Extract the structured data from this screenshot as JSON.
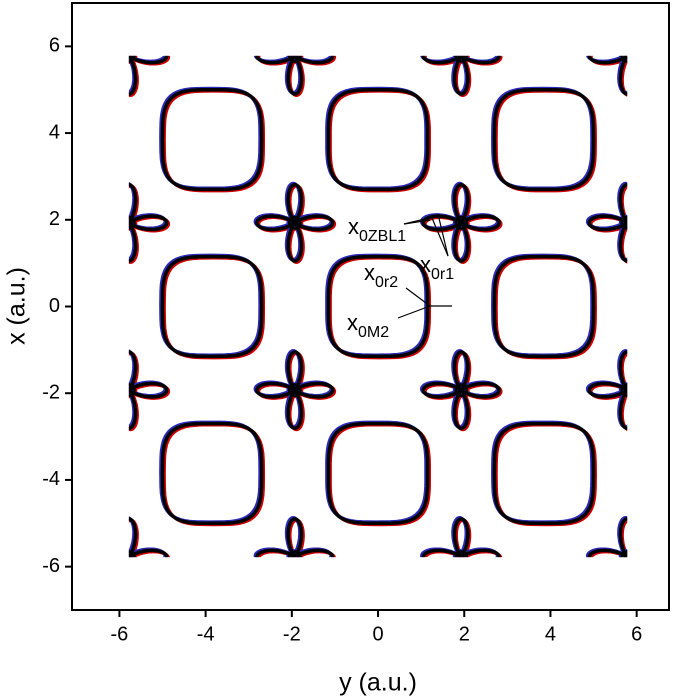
{
  "chart_data": {
    "type": "contour",
    "x_label": "y (a.u.)",
    "y_label": "x (a.u.)",
    "xlim": [
      -7.1,
      6.75
    ],
    "ylim": [
      -7,
      7
    ],
    "xticks": [
      -6,
      -4,
      -2,
      0,
      2,
      4,
      6
    ],
    "yticks": [
      -6,
      -4,
      -2,
      0,
      2,
      4,
      6
    ],
    "colors": [
      "#d00000",
      "#2a2ab8",
      "#000000"
    ],
    "squares": {
      "x": [
        -3.85,
        0,
        3.85,
        -3.85,
        0,
        3.85,
        -3.85,
        0,
        3.85
      ],
      "y": [
        3.85,
        3.85,
        3.85,
        0,
        0,
        0,
        -3.85,
        -3.85,
        -3.85
      ]
    },
    "clovers": {
      "x": [
        -5.78,
        -1.93,
        1.93,
        5.78,
        -5.78,
        -1.93,
        1.93,
        5.78,
        -5.78,
        -1.93,
        1.93,
        5.78,
        -5.78,
        -1.93,
        1.93,
        5.78
      ],
      "y": [
        5.78,
        5.78,
        5.78,
        5.78,
        1.93,
        1.93,
        1.93,
        1.93,
        -1.93,
        -1.93,
        -1.93,
        -1.93,
        -5.78,
        -5.78,
        -5.78,
        -5.78
      ]
    },
    "annotations": [
      {
        "text": "x",
        "sub": "0ZBL1"
      },
      {
        "text": "x",
        "sub": "0r1"
      },
      {
        "text": "x",
        "sub": "0r2"
      },
      {
        "text": "x",
        "sub": "0M2"
      }
    ]
  }
}
